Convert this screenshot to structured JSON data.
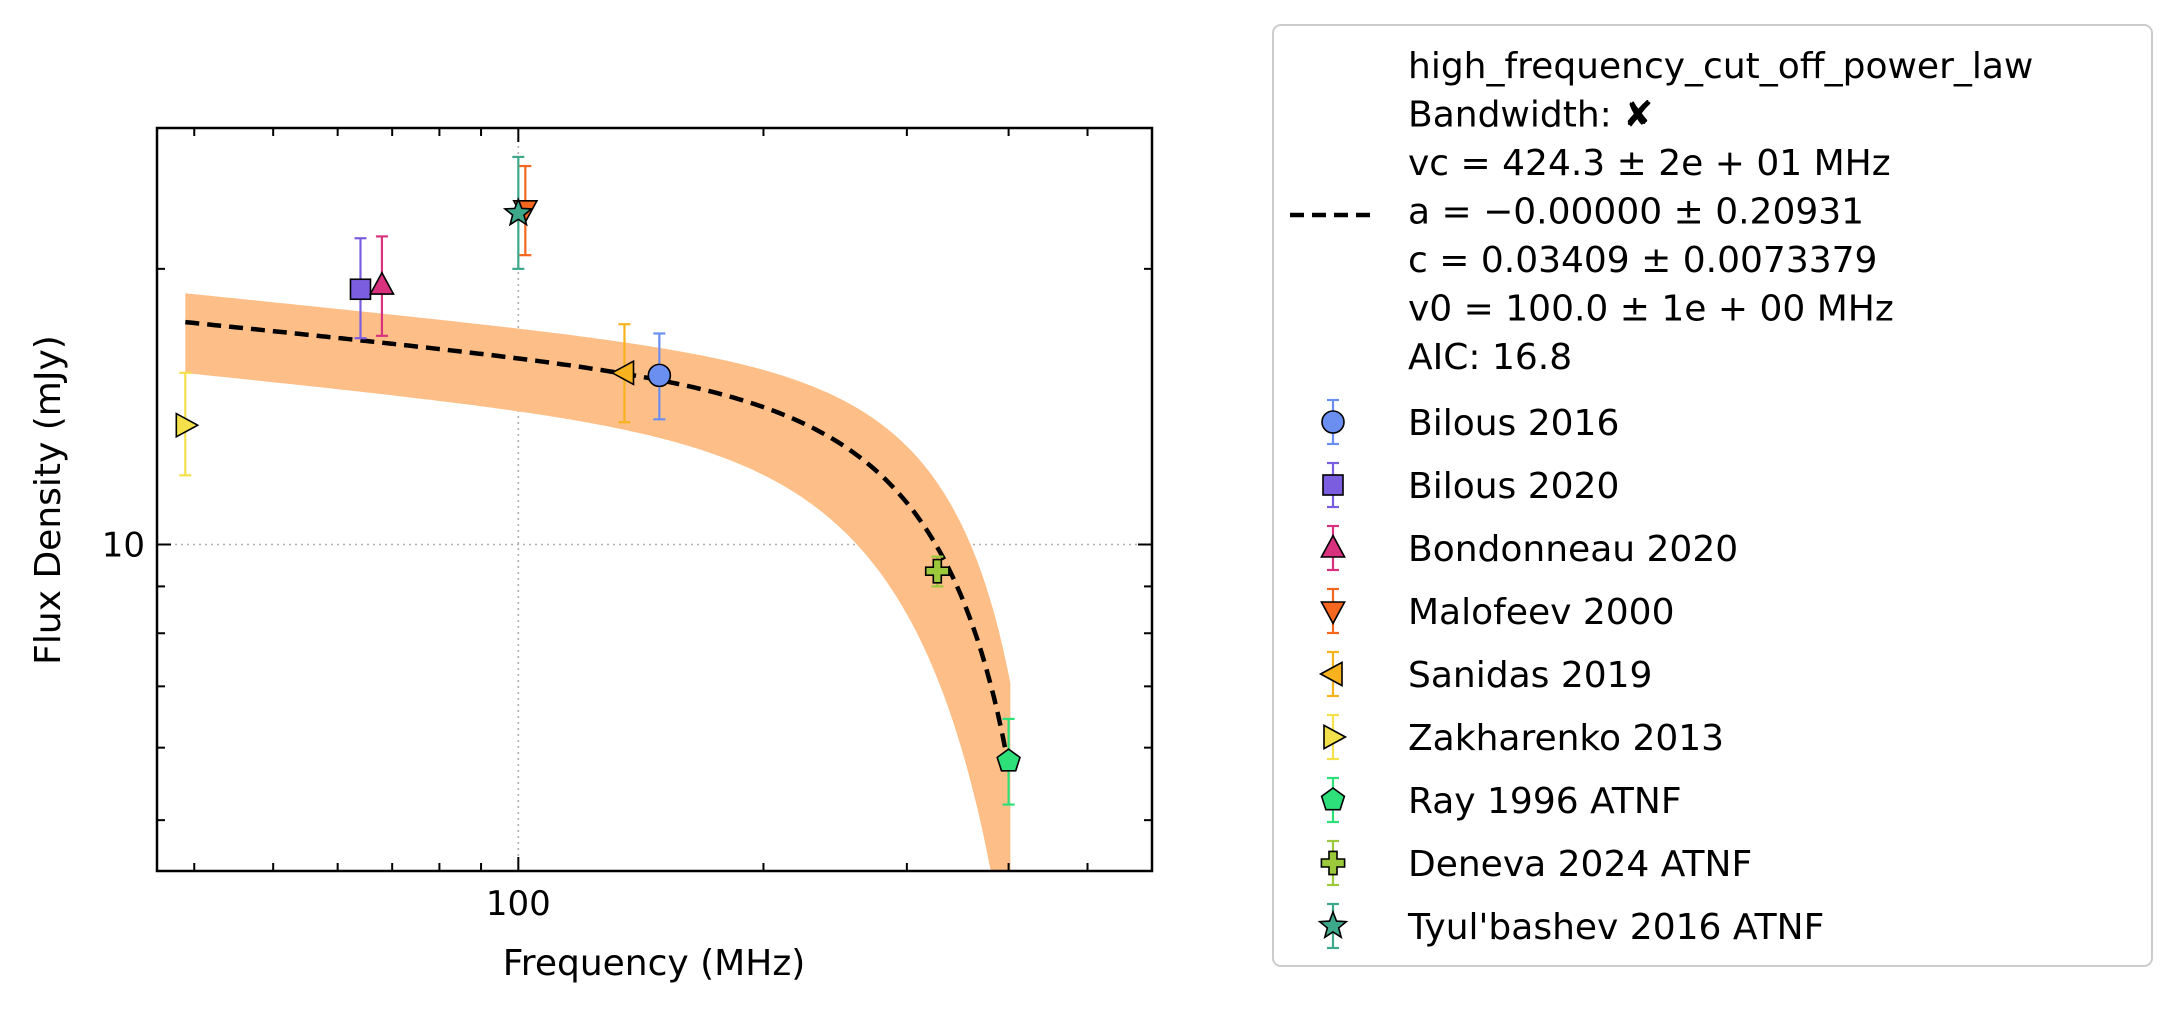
{
  "chart_data": {
    "type": "scatter",
    "xlabel": "Frequency (MHz)",
    "ylabel": "Flux Density (mJy)",
    "x_scale": "log",
    "y_scale": "log",
    "xlim": [
      36,
      600
    ],
    "ylim": [
      4.4,
      28.5
    ],
    "x_tick_labels": [
      {
        "value": 100,
        "label": "100"
      }
    ],
    "y_tick_labels": [
      {
        "value": 10,
        "label": "10"
      }
    ],
    "grid": "major ticks only, dotted",
    "legend_position": "outside right",
    "fit": {
      "model": "high_frequency_cut_off_power_law",
      "lines": [
        "high_frequency_cut_off_power_law",
        "Bandwidth: ✘",
        "vc = 424.3 ± 2e + 01 MHz",
        "a = −0.00000 ± 0.20931",
        "c = 0.03409 ± 0.0073379",
        "v0 = 100.0 ± 1e + 00 MHz",
        "AIC: 16.8"
      ],
      "vc": 424.3,
      "a": 0.0,
      "c": 0.03409,
      "v0": 100.0,
      "line_color": "#000000",
      "band_color": "#fdbf87"
    },
    "series": [
      {
        "name": "Bilous 2016",
        "marker": "circle",
        "color": "#6b8ff0",
        "points": [
          {
            "x": 149,
            "y": 15.3,
            "ylo": 13.7,
            "yhi": 17.0
          }
        ]
      },
      {
        "name": "Bilous 2020",
        "marker": "square",
        "color": "#7b5ee0",
        "points": [
          {
            "x": 64,
            "y": 19.0,
            "ylo": 16.8,
            "yhi": 21.6
          }
        ]
      },
      {
        "name": "Bondonneau 2020",
        "marker": "triangle-up",
        "color": "#d8327e",
        "points": [
          {
            "x": 68,
            "y": 19.2,
            "ylo": 16.9,
            "yhi": 21.7
          }
        ]
      },
      {
        "name": "Malofeev 2000",
        "marker": "triangle-down",
        "color": "#f5661e",
        "points": [
          {
            "x": 102,
            "y": 23.2,
            "ylo": 20.7,
            "yhi": 25.9
          }
        ]
      },
      {
        "name": "Sanidas 2019",
        "marker": "triangle-left",
        "color": "#f7b21e",
        "points": [
          {
            "x": 135,
            "y": 15.4,
            "ylo": 13.6,
            "yhi": 17.4
          }
        ]
      },
      {
        "name": "Zakharenko 2013",
        "marker": "triangle-right",
        "color": "#f4e04a",
        "points": [
          {
            "x": 39,
            "y": 13.5,
            "ylo": 11.9,
            "yhi": 15.4
          }
        ]
      },
      {
        "name": "Ray 1996 ATNF",
        "marker": "pentagon",
        "color": "#2de07a",
        "points": [
          {
            "x": 400,
            "y": 5.8,
            "ylo": 5.2,
            "yhi": 6.45
          }
        ]
      },
      {
        "name": "Deneva 2024 ATNF",
        "marker": "plus",
        "color": "#9cc83c",
        "points": [
          {
            "x": 327,
            "y": 9.35,
            "ylo": 9.0,
            "yhi": 9.7
          }
        ]
      },
      {
        "name": "Tyul'bashev 2016 ATNF",
        "marker": "star",
        "color": "#3ea88a",
        "points": [
          {
            "x": 100,
            "y": 23.0,
            "ylo": 20.0,
            "yhi": 26.5
          }
        ]
      }
    ]
  }
}
